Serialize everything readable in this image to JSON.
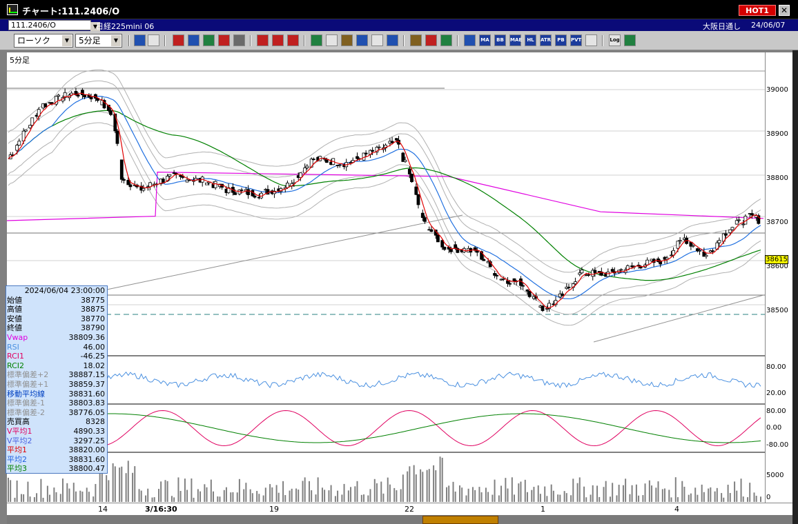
{
  "window": {
    "title": "チャート:111.2406/O",
    "hot_label": "HOT1",
    "close_label": "✕"
  },
  "info": {
    "symbol": "111.2406/O",
    "instrument": "日経225mini 06",
    "market": "大阪日通し",
    "date": "24/06/07"
  },
  "toolbar": {
    "chart_type": "ローソク",
    "period": "5分足",
    "label_buttons": [
      "MA",
      "BB",
      "MAE",
      "HL",
      "ATR",
      "PB",
      "PVT"
    ],
    "log_label": "Log"
  },
  "chart": {
    "timeframe_label": "5分足",
    "y_ticks": [
      "39000",
      "38900",
      "38800",
      "38700",
      "38600",
      "38500"
    ],
    "current_price": "38615",
    "rsi_ticks": [
      "80.00",
      "20.00"
    ],
    "rci_ticks": [
      "80.00",
      "0.00",
      "-80.00"
    ],
    "vol_ticks": [
      "5000",
      "0"
    ],
    "x_ticks": [
      "14",
      "3/16:30",
      "19",
      "22",
      "1",
      "4"
    ]
  },
  "data_window": {
    "datetime": "2024/06/04 23:00:00",
    "rows": [
      {
        "label": "始値",
        "value": "38775",
        "color": "#000000"
      },
      {
        "label": "高値",
        "value": "38875",
        "color": "#000000"
      },
      {
        "label": "安値",
        "value": "38770",
        "color": "#000000"
      },
      {
        "label": "終値",
        "value": "38790",
        "color": "#000000"
      },
      {
        "label": "Vwap",
        "value": "38809.36",
        "color": "#e000e0"
      },
      {
        "label": "RSI",
        "value": "46.00",
        "color": "#4a90e0"
      },
      {
        "label": "RCI1",
        "value": "-46.25",
        "color": "#e00060"
      },
      {
        "label": "RCI2",
        "value": "18.02",
        "color": "#008000"
      },
      {
        "label": "標準偏差+2",
        "value": "38887.15",
        "color": "#909090"
      },
      {
        "label": "標準偏差+1",
        "value": "38859.37",
        "color": "#909090"
      },
      {
        "label": "移動平均線",
        "value": "38831.60",
        "color": "#0040c0"
      },
      {
        "label": "標準偏差-1",
        "value": "38803.83",
        "color": "#909090"
      },
      {
        "label": "標準偏差-2",
        "value": "38776.05",
        "color": "#909090"
      },
      {
        "label": "売買高",
        "value": "8328",
        "color": "#000000"
      },
      {
        "label": "V平均1",
        "value": "4890.33",
        "color": "#e00060"
      },
      {
        "label": "V平均2",
        "value": "3297.25",
        "color": "#4a60e0"
      },
      {
        "label": "平均1",
        "value": "38820.00",
        "color": "#e00000"
      },
      {
        "label": "平均2",
        "value": "38831.60",
        "color": "#2060e0"
      },
      {
        "label": "平均3",
        "value": "38800.47",
        "color": "#008000"
      }
    ]
  },
  "colors": {
    "ma_short": "#e00000",
    "ma_mid": "#2070e0",
    "ma_long": "#008000",
    "vwap": "#e000e0",
    "bb": "#b0b0b0",
    "candle_up": "#ffffff",
    "candle_down": "#000000",
    "rsi": "#4a90e0",
    "rci1": "#e00060",
    "rci2": "#008000"
  }
}
